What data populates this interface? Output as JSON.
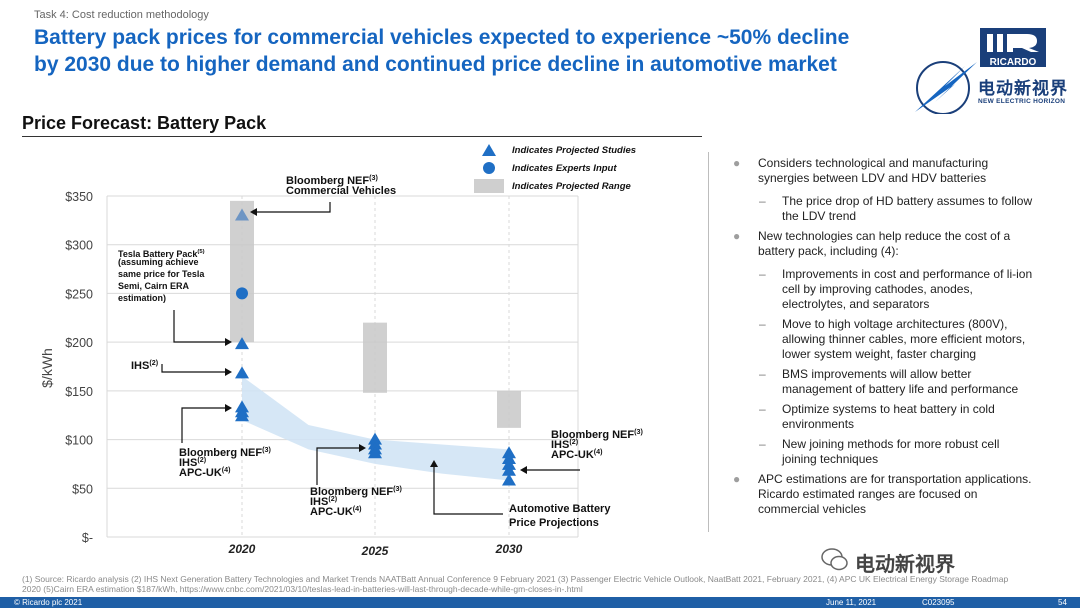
{
  "header": {
    "task": "Task 4: Cost reduction methodology",
    "headline_line1": "Battery pack prices for commercial vehicles expected to experience ~50% decline",
    "headline_line2": "by 2030 due to higher demand and continued price decline in automotive market"
  },
  "logo": {
    "brand": "RICARDO",
    "cn": "电动新视界",
    "en": "NEW ELECTRIC HORIZON"
  },
  "section_title": "Price Forecast: Battery Pack",
  "legend": {
    "studies": "Indicates Projected Studies",
    "experts": "Indicates Experts Input",
    "range": "Indicates Projected Range"
  },
  "colors": {
    "accent": "#1565c0",
    "marker": "#1f6fc5",
    "band": "#cfe3f5",
    "range": "#c8c8c8",
    "footer": "#1f5fa6"
  },
  "chart_data": {
    "type": "scatter",
    "ylabel": "$/kWh",
    "ylim": [
      0,
      350
    ],
    "y_ticks": [
      {
        "value": 350,
        "label": "$350"
      },
      {
        "value": 300,
        "label": "$300"
      },
      {
        "value": 250,
        "label": "$250"
      },
      {
        "value": 200,
        "label": "$200"
      },
      {
        "value": 150,
        "label": "$150"
      },
      {
        "value": 100,
        "label": "$100"
      },
      {
        "value": 50,
        "label": "$50"
      },
      {
        "value": 0,
        "label": "$-"
      }
    ],
    "x_ticks": [
      2020,
      2025,
      2030
    ],
    "grid": true,
    "ranges": [
      {
        "x": 2020,
        "low": 200,
        "high": 345
      },
      {
        "x": 2025,
        "low": 148,
        "high": 220
      },
      {
        "x": 2030,
        "low": 112,
        "high": 150
      }
    ],
    "band": {
      "x": [
        2020,
        2022.5,
        2025,
        2027.5,
        2030
      ],
      "upper": [
        165,
        115,
        100,
        95,
        90
      ],
      "lower": [
        120,
        90,
        75,
        65,
        58
      ]
    },
    "studies": [
      {
        "x": 2020,
        "y": 330,
        "faded": true
      },
      {
        "x": 2020,
        "y": 198
      },
      {
        "x": 2020,
        "y": 168
      },
      {
        "x": 2020,
        "y": 133
      },
      {
        "x": 2020,
        "y": 128
      },
      {
        "x": 2020,
        "y": 124
      },
      {
        "x": 2025,
        "y": 100
      },
      {
        "x": 2025,
        "y": 95
      },
      {
        "x": 2025,
        "y": 90
      },
      {
        "x": 2025,
        "y": 86
      },
      {
        "x": 2030,
        "y": 86
      },
      {
        "x": 2030,
        "y": 80
      },
      {
        "x": 2030,
        "y": 74
      },
      {
        "x": 2030,
        "y": 68
      },
      {
        "x": 2030,
        "y": 58
      }
    ],
    "experts": [
      {
        "x": 2020,
        "y": 250
      }
    ],
    "annotations": {
      "bnef_cv": [
        "Bloomberg NEF(3)",
        "Commercial Vehicles"
      ],
      "tesla": [
        "Tesla Battery Pack(5)",
        "(assuming achieve",
        "same price for Tesla",
        "Semi, Cairn ERA",
        "estimation)"
      ],
      "ihs": [
        "IHS(2)"
      ],
      "group2020": [
        "Bloomberg NEF(3)",
        "IHS(2)",
        "APC-UK (4)"
      ],
      "group2025": [
        "Bloomberg NEF(3)",
        "IHS(2)",
        "APC-UK (4)"
      ],
      "group2030": [
        "Bloomberg NEF(3)",
        "IHS(2)",
        "APC-UK (4)"
      ],
      "projection": [
        "Automotive Battery",
        "Price Projections"
      ]
    }
  },
  "bullets": [
    {
      "text": "Considers technological and manufacturing synergies between LDV and HDV batteries",
      "subs": [
        "The price drop of HD battery assumes to follow the LDV trend"
      ]
    },
    {
      "text": "New technologies can help reduce the cost of a battery pack, including (4):",
      "subs": [
        "Improvements in cost and performance of li-ion cell by improving cathodes, anodes, electrolytes, and separators",
        "Move to high voltage architectures (800V), allowing thinner cables, more efficient motors, lower system weight, faster charging",
        "BMS improvements will allow better management of battery life and performance",
        "Optimize systems to heat battery in cold environments",
        "New joining methods for more robust cell joining techniques"
      ]
    },
    {
      "text": "APC estimations are for transportation applications. Ricardo estimated ranges are focused on commercial vehicles",
      "subs": []
    }
  ],
  "footnote": "(1)  Source: Ricardo analysis  (2) IHS Next Generation Battery Technologies and Market Trends NAATBatt Annual Conference 9 February 2021 (3) Passenger Electric Vehicle Outlook, NaatBatt 2021, February 2021, (4) APC UK Electrical Energy Storage Roadmap 2020 (5)Cairn ERA estimation $187/kWh, https://www.cnbc.com/2021/03/10/teslas-lead-in-batteries-will-last-through-decade-while-gm-closes-in-.html",
  "footer": {
    "copyright": "© Ricardo plc 2021",
    "date": "June 11,  2021",
    "code": "C023095",
    "page": "54"
  },
  "watermark": "电动新视界"
}
